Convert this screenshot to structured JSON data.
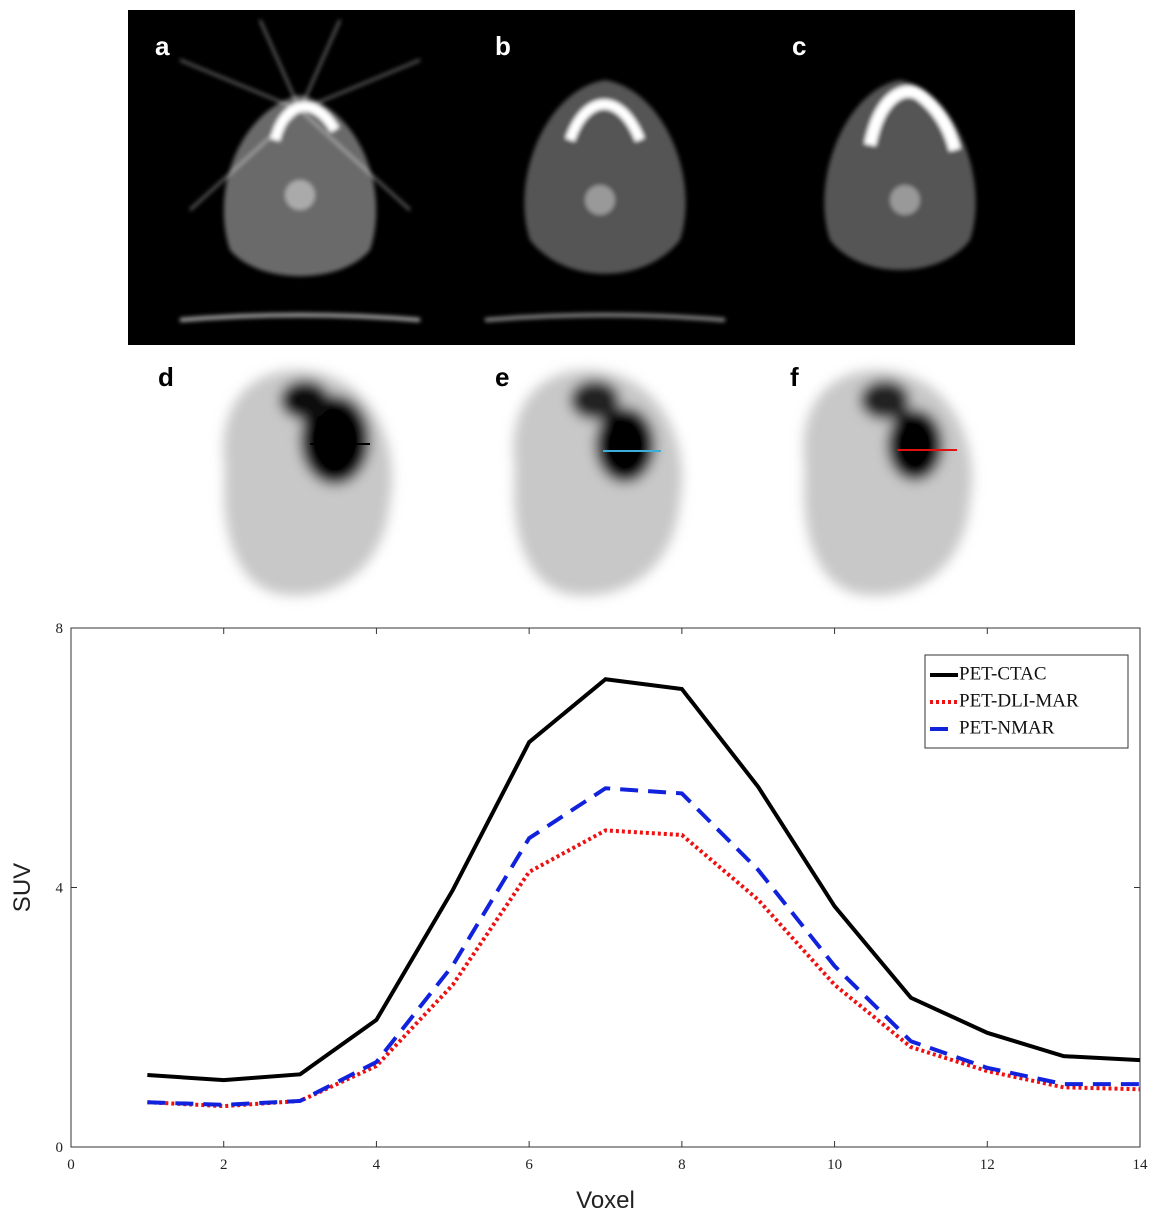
{
  "panel_labels": [
    "a",
    "b",
    "c",
    "d",
    "e",
    "f"
  ],
  "chart_data": {
    "type": "line",
    "x_label": "Voxel",
    "y_label": "SUV",
    "x": [
      1,
      2,
      3,
      4,
      5,
      6,
      7,
      8,
      9,
      10,
      11,
      12,
      13,
      14
    ],
    "xlim": [
      0,
      14
    ],
    "xticks": [
      0,
      2,
      4,
      6,
      8,
      10,
      12,
      14
    ],
    "ylim": [
      0,
      8
    ],
    "yticks": [
      0,
      4,
      8
    ],
    "legend": "upper right",
    "series": [
      {
        "name": "PET-CTAC",
        "color": "#000000",
        "style": "solid",
        "values": [
          1.11,
          1.03,
          1.12,
          1.96,
          3.96,
          6.24,
          7.21,
          7.06,
          5.55,
          3.71,
          2.3,
          1.76,
          1.4,
          1.34
        ]
      },
      {
        "name": "PET-DLI-MAR",
        "color": "#ee1111",
        "style": "dotted",
        "values": [
          0.69,
          0.63,
          0.71,
          1.25,
          2.5,
          4.24,
          4.88,
          4.81,
          3.81,
          2.5,
          1.54,
          1.17,
          0.92,
          0.89
        ]
      },
      {
        "name": "PET-NMAR",
        "color": "#1122dd",
        "style": "dashed",
        "values": [
          0.69,
          0.65,
          0.71,
          1.31,
          2.8,
          4.76,
          5.53,
          5.45,
          4.27,
          2.79,
          1.63,
          1.22,
          0.97,
          0.97
        ]
      }
    ]
  }
}
